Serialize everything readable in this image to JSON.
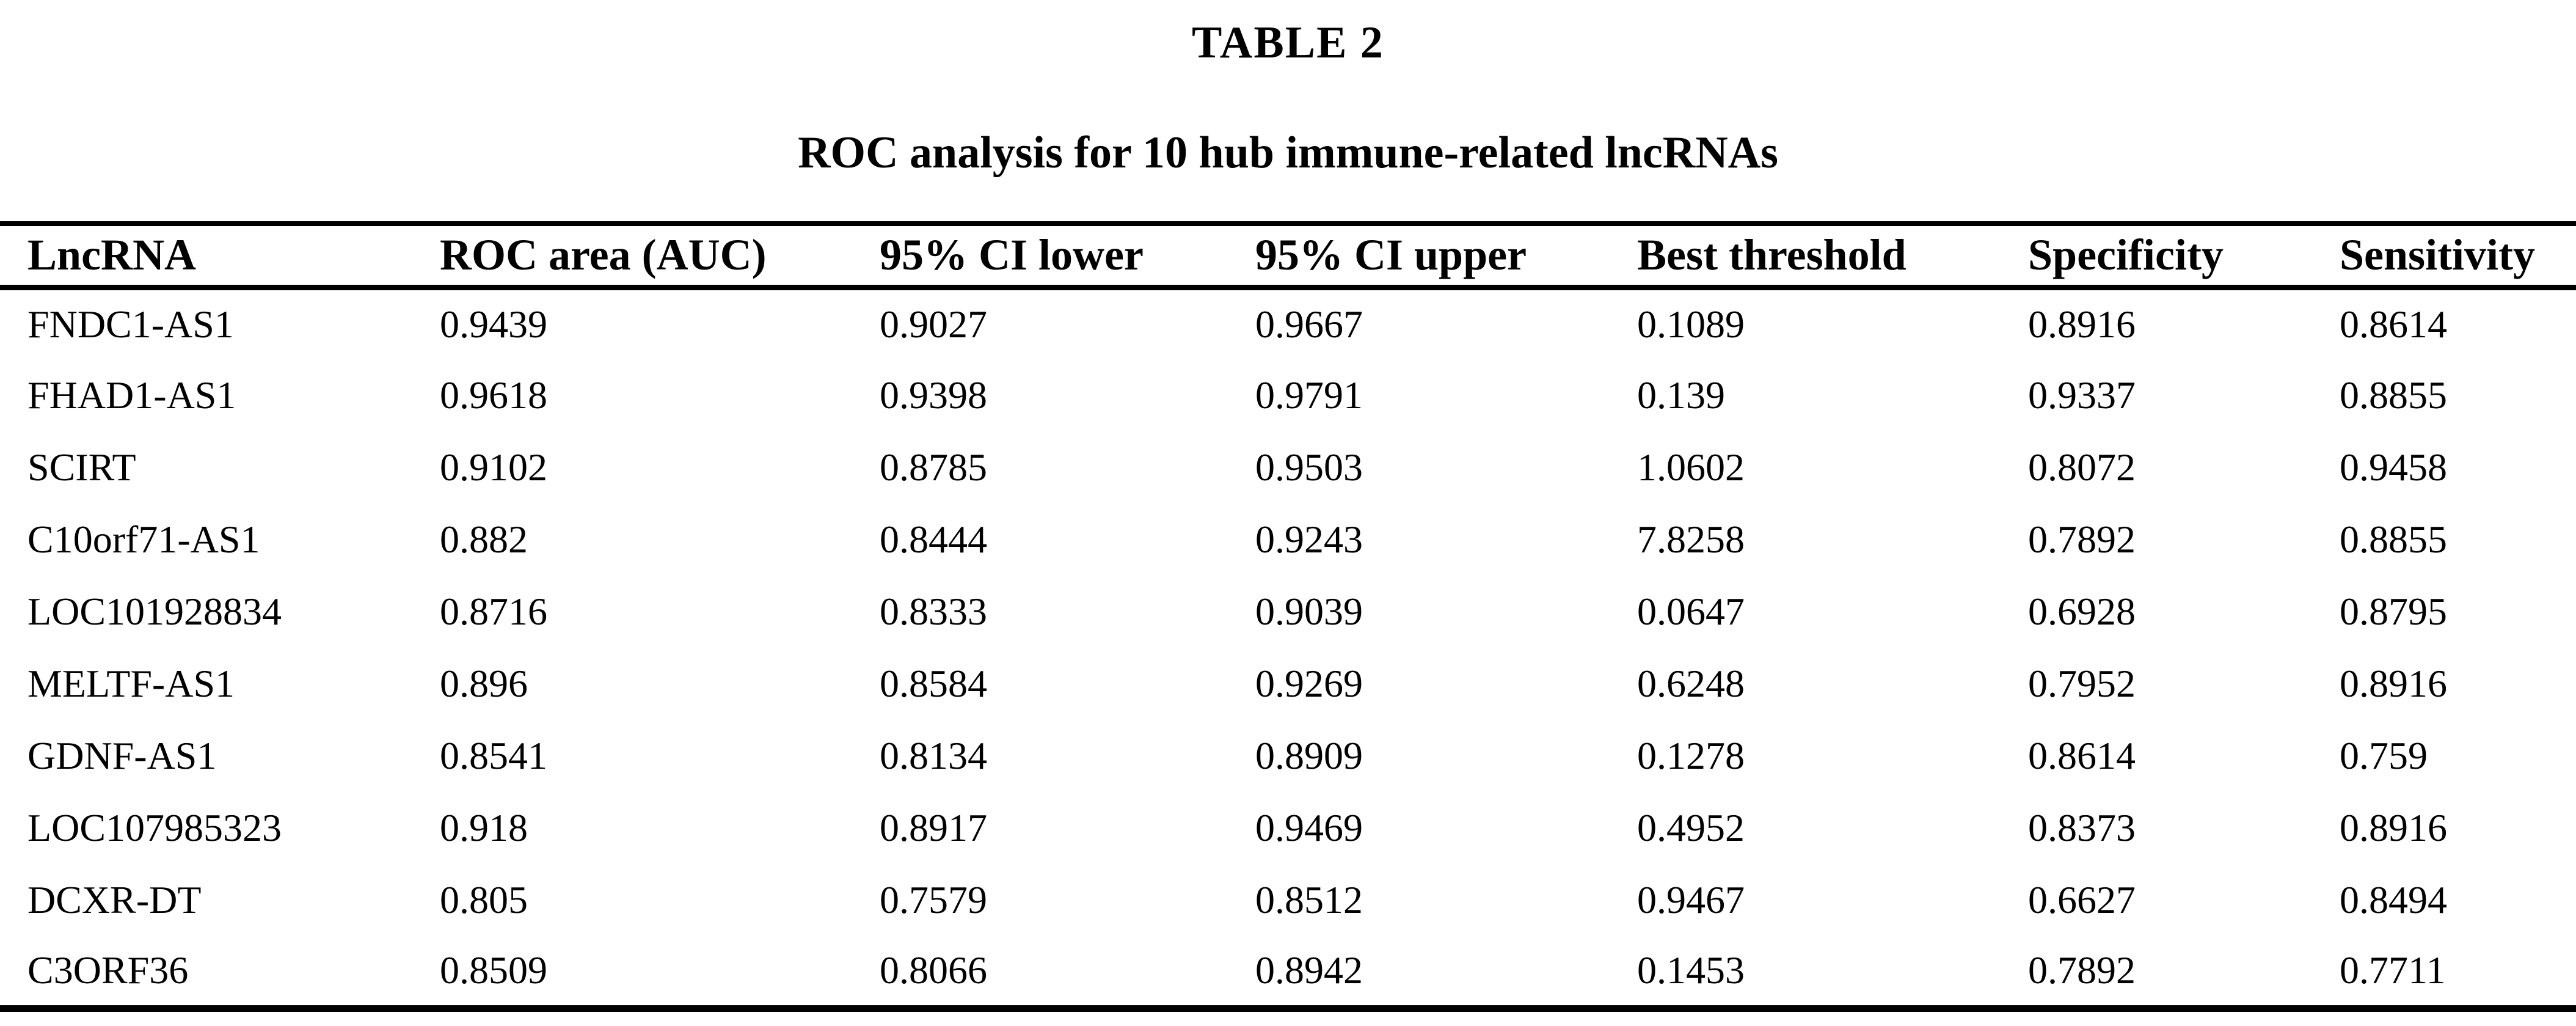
{
  "page": {
    "background_color": "#ffffff",
    "text_color": "#000000",
    "title_label": "TABLE 2",
    "caption": "ROC analysis for 10 hub immune-related lncRNAs"
  },
  "chart_data": {
    "type": "table",
    "title": "ROC analysis for 10 hub immune-related lncRNAs",
    "columns": [
      "LncRNA",
      "ROC area (AUC)",
      "95% CI lower",
      "95% CI upper",
      "Best threshold",
      "Specificity",
      "Sensitivity"
    ],
    "rows": [
      [
        "FNDC1-AS1",
        "0.9439",
        "0.9027",
        "0.9667",
        "0.1089",
        "0.8916",
        "0.8614"
      ],
      [
        "FHAD1-AS1",
        "0.9618",
        "0.9398",
        "0.9791",
        "0.139",
        "0.9337",
        "0.8855"
      ],
      [
        "SCIRT",
        "0.9102",
        "0.8785",
        "0.9503",
        "1.0602",
        "0.8072",
        "0.9458"
      ],
      [
        "C10orf71-AS1",
        "0.882",
        "0.8444",
        "0.9243",
        "7.8258",
        "0.7892",
        "0.8855"
      ],
      [
        "LOC101928834",
        "0.8716",
        "0.8333",
        "0.9039",
        "0.0647",
        "0.6928",
        "0.8795"
      ],
      [
        "MELTF-AS1",
        "0.896",
        "0.8584",
        "0.9269",
        "0.6248",
        "0.7952",
        "0.8916"
      ],
      [
        "GDNF-AS1",
        "0.8541",
        "0.8134",
        "0.8909",
        "0.1278",
        "0.8614",
        "0.759"
      ],
      [
        "LOC107985323",
        "0.918",
        "0.8917",
        "0.9469",
        "0.4952",
        "0.8373",
        "0.8916"
      ],
      [
        "DCXR-DT",
        "0.805",
        "0.7579",
        "0.8512",
        "0.9467",
        "0.6627",
        "0.8494"
      ],
      [
        "C3ORF36",
        "0.8509",
        "0.8066",
        "0.8942",
        "0.1453",
        "0.7892",
        "0.7711"
      ]
    ],
    "column_slugs": [
      "lncrna",
      "roc-area-auc",
      "ci-95-lower",
      "ci-95-upper",
      "best-threshold",
      "specificity",
      "sensitivity"
    ]
  }
}
